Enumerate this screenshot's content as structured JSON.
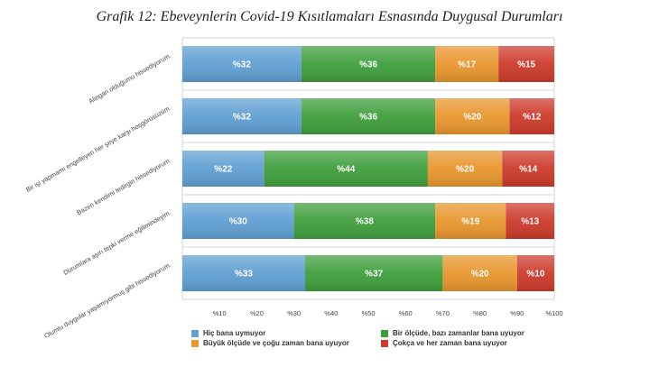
{
  "title": "Grafik 12: Ebeveynlerin Covid-19 Kısıtlamaları Esnasında Duygusal Durumları",
  "colors": {
    "hic": "#5f9fd2",
    "bir_olcude": "#3f9e3c",
    "buyuk": "#e8962d",
    "cokca": "#cc3a2b"
  },
  "chart_data": {
    "type": "bar",
    "orientation": "horizontal",
    "stacked": true,
    "title": "Grafik 12: Ebeveynlerin Covid-19 Kısıtlamaları Esnasında Duygusal Durumları",
    "categories": [
      "Alingan olduğumu hissediyorum.",
      "Bir işi yapmamı engelleyen her şeye karşı hoşgörüsüzüm.",
      "Bazen kendimi tedirgin hissediyorum.",
      "Durumlara aşırı tepki verme eğilimindeyim.",
      "Olumlu duygular yaşamıyormuş gibi hissediyorum."
    ],
    "series": [
      {
        "name": "Hiç bana uymuyor",
        "values": [
          32,
          32,
          22,
          30,
          33
        ],
        "labels": [
          "%32",
          "%32",
          "%22",
          "%30",
          "%33"
        ]
      },
      {
        "name": "Bir ölçüde, bazı zamanlar bana uyuyor",
        "values": [
          36,
          36,
          44,
          38,
          37
        ],
        "labels": [
          "%36",
          "%36",
          "%44",
          "%38",
          "%37"
        ]
      },
      {
        "name": "Büyük ölçüde ve çoğu zaman bana uyuyor",
        "values": [
          17,
          20,
          20,
          19,
          20
        ],
        "labels": [
          "%17",
          "%20",
          "%20",
          "%19",
          "%20"
        ]
      },
      {
        "name": "Çokça ve her zaman bana uyuyor",
        "values": [
          15,
          12,
          14,
          13,
          10
        ],
        "labels": [
          "%15",
          "%12",
          "%14",
          "%13",
          "%10"
        ]
      }
    ],
    "xlim": [
      0,
      100
    ],
    "xticks": [
      "%10",
      "%20",
      "%30",
      "%40",
      "%50",
      "%60",
      "%70",
      "%80",
      "%90",
      "%100"
    ],
    "grid": true,
    "legend_position": "bottom"
  }
}
